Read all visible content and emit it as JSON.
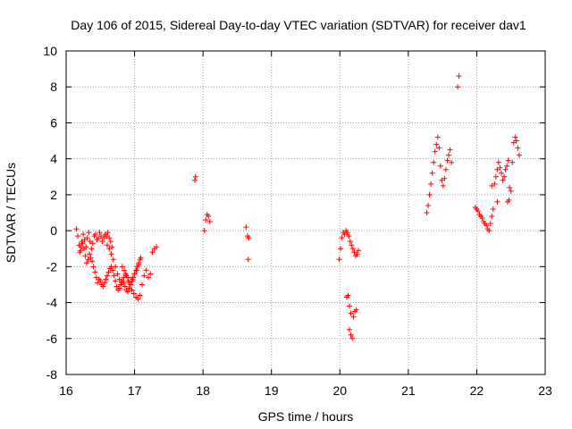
{
  "chart_data": {
    "type": "scatter",
    "title": "Day 106 of 2015, Sidereal Day-to-day VTEC variation (SDTVAR) for receiver dav1",
    "xlabel": "GPS time / hours",
    "ylabel": "SDTVAR / TECUs",
    "xlim": [
      16,
      23
    ],
    "ylim": [
      -8,
      10
    ],
    "xticks": [
      16,
      17,
      18,
      19,
      20,
      21,
      22,
      23
    ],
    "yticks": [
      -8,
      -6,
      -4,
      -2,
      0,
      2,
      4,
      6,
      8,
      10
    ],
    "grid": true,
    "marker": "+",
    "series": [
      {
        "name": "SDTVAR",
        "color": "#ff0000",
        "x": [
          16.15,
          16.17,
          16.19,
          16.21,
          16.23,
          16.25,
          16.27,
          16.29,
          16.31,
          16.33,
          16.35,
          16.37,
          16.39,
          16.41,
          16.43,
          16.45,
          16.47,
          16.49,
          16.51,
          16.53,
          16.55,
          16.57,
          16.59,
          16.61,
          16.63,
          16.65,
          16.67,
          16.2,
          16.22,
          16.24,
          16.26,
          16.28,
          16.3,
          16.32,
          16.34,
          16.36,
          16.38,
          16.4,
          16.42,
          16.44,
          16.46,
          16.48,
          16.5,
          16.52,
          16.54,
          16.56,
          16.58,
          16.6,
          16.62,
          16.64,
          16.66,
          16.68,
          16.7,
          16.72,
          16.74,
          16.76,
          16.78,
          16.8,
          16.82,
          16.84,
          16.86,
          16.88,
          16.9,
          16.92,
          16.94,
          16.96,
          16.98,
          17.0,
          17.02,
          17.04,
          17.06,
          17.08,
          16.6,
          16.63,
          16.66,
          16.69,
          16.72,
          16.75,
          16.78,
          16.81,
          16.84,
          16.87,
          16.9,
          16.93,
          16.96,
          16.99,
          17.02,
          17.05,
          17.08,
          17.11,
          17.14,
          17.17,
          17.2,
          17.23,
          17.26,
          17.29,
          17.32,
          16.82,
          16.85,
          16.88,
          16.91,
          16.94,
          16.97,
          17.0,
          17.03,
          17.06,
          17.09,
          17.88,
          17.89,
          18.02,
          18.04,
          18.06,
          18.08,
          18.1,
          18.63,
          18.65,
          18.67,
          18.66,
          19.99,
          20.01,
          20.03,
          20.05,
          20.07,
          20.09,
          20.11,
          20.13,
          20.15,
          20.17,
          20.19,
          20.21,
          20.23,
          20.25,
          20.27,
          20.1,
          20.12,
          20.14,
          20.16,
          20.18,
          20.2,
          20.22,
          20.24,
          20.14,
          20.16,
          21.27,
          21.29,
          21.31,
          21.33,
          21.35,
          21.37,
          21.39,
          21.41,
          21.43,
          21.45,
          21.47,
          21.49,
          21.51,
          21.53,
          21.55,
          21.57,
          21.59,
          21.61,
          21.63,
          21.72,
          21.74,
          21.98,
          22.0,
          22.02,
          22.04,
          22.06,
          22.08,
          22.1,
          22.12,
          22.14,
          22.16,
          22.18,
          22.2,
          22.22,
          22.24,
          22.26,
          22.28,
          22.3,
          22.32,
          22.34,
          22.36,
          22.38,
          22.4,
          22.42,
          22.44,
          22.46,
          22.48,
          22.5,
          22.52,
          22.54,
          22.56,
          22.58,
          22.6,
          22.62,
          22.45,
          22.47,
          22.22,
          22.3
        ],
        "y": [
          0.1,
          -0.3,
          -0.8,
          -1.1,
          -0.6,
          -0.2,
          -0.5,
          -0.9,
          -0.4,
          -0.1,
          -0.6,
          -1.0,
          -0.7,
          -0.3,
          -0.2,
          -0.5,
          -0.4,
          -0.1,
          -0.3,
          -0.6,
          -0.4,
          -0.2,
          -0.3,
          -0.1,
          -0.4,
          -0.6,
          -0.9,
          -1.2,
          -0.9,
          -0.7,
          -1.0,
          -1.4,
          -1.8,
          -1.6,
          -1.3,
          -1.5,
          -1.7,
          -2.0,
          -2.3,
          -2.6,
          -2.9,
          -2.7,
          -2.8,
          -3.0,
          -3.1,
          -2.9,
          -2.7,
          -2.5,
          -2.3,
          -2.1,
          -2.0,
          -2.2,
          -2.5,
          -2.8,
          -3.1,
          -3.3,
          -3.2,
          -3.0,
          -2.8,
          -2.9,
          -3.1,
          -3.3,
          -3.4,
          -3.2,
          -3.0,
          -2.8,
          -2.6,
          -2.4,
          -2.2,
          -2.0,
          -1.8,
          -1.6,
          -0.8,
          -1.0,
          -1.3,
          -1.6,
          -2.0,
          -2.4,
          -2.7,
          -2.9,
          -2.6,
          -2.4,
          -2.6,
          -2.9,
          -3.3,
          -3.5,
          -3.7,
          -3.8,
          -3.6,
          -3.0,
          -2.5,
          -2.2,
          -2.6,
          -2.4,
          -1.2,
          -1.0,
          -0.9,
          -2.0,
          -2.2,
          -2.5,
          -2.8,
          -3.0,
          -2.7,
          -2.4,
          -2.2,
          -1.9,
          -1.5,
          2.8,
          3.0,
          0.0,
          0.6,
          0.9,
          0.8,
          0.5,
          0.2,
          -0.3,
          -0.4,
          -1.6,
          -1.6,
          -1.0,
          -0.4,
          -0.1,
          -0.2,
          0.0,
          -0.1,
          -0.3,
          -0.6,
          -0.8,
          -1.0,
          -1.2,
          -1.4,
          -1.3,
          -1.1,
          -3.7,
          -3.6,
          -4.2,
          -5.8,
          -6.0,
          -4.8,
          -4.5,
          -4.4,
          -5.5,
          -4.6,
          1.0,
          1.4,
          2.0,
          2.6,
          3.2,
          3.8,
          4.4,
          4.8,
          5.2,
          4.6,
          3.6,
          2.8,
          2.5,
          2.9,
          3.4,
          3.9,
          4.2,
          4.5,
          3.8,
          8.0,
          8.6,
          1.3,
          1.2,
          1.1,
          0.9,
          0.8,
          0.7,
          0.5,
          0.4,
          0.3,
          0.1,
          0.0,
          0.4,
          0.8,
          1.2,
          2.6,
          3.0,
          3.4,
          3.8,
          3.5,
          3.2,
          2.8,
          3.0,
          3.4,
          3.6,
          3.9,
          2.4,
          2.2,
          3.8,
          4.9,
          5.2,
          5.0,
          4.6,
          4.2,
          1.6,
          1.7,
          2.5,
          1.6
        ]
      }
    ]
  }
}
